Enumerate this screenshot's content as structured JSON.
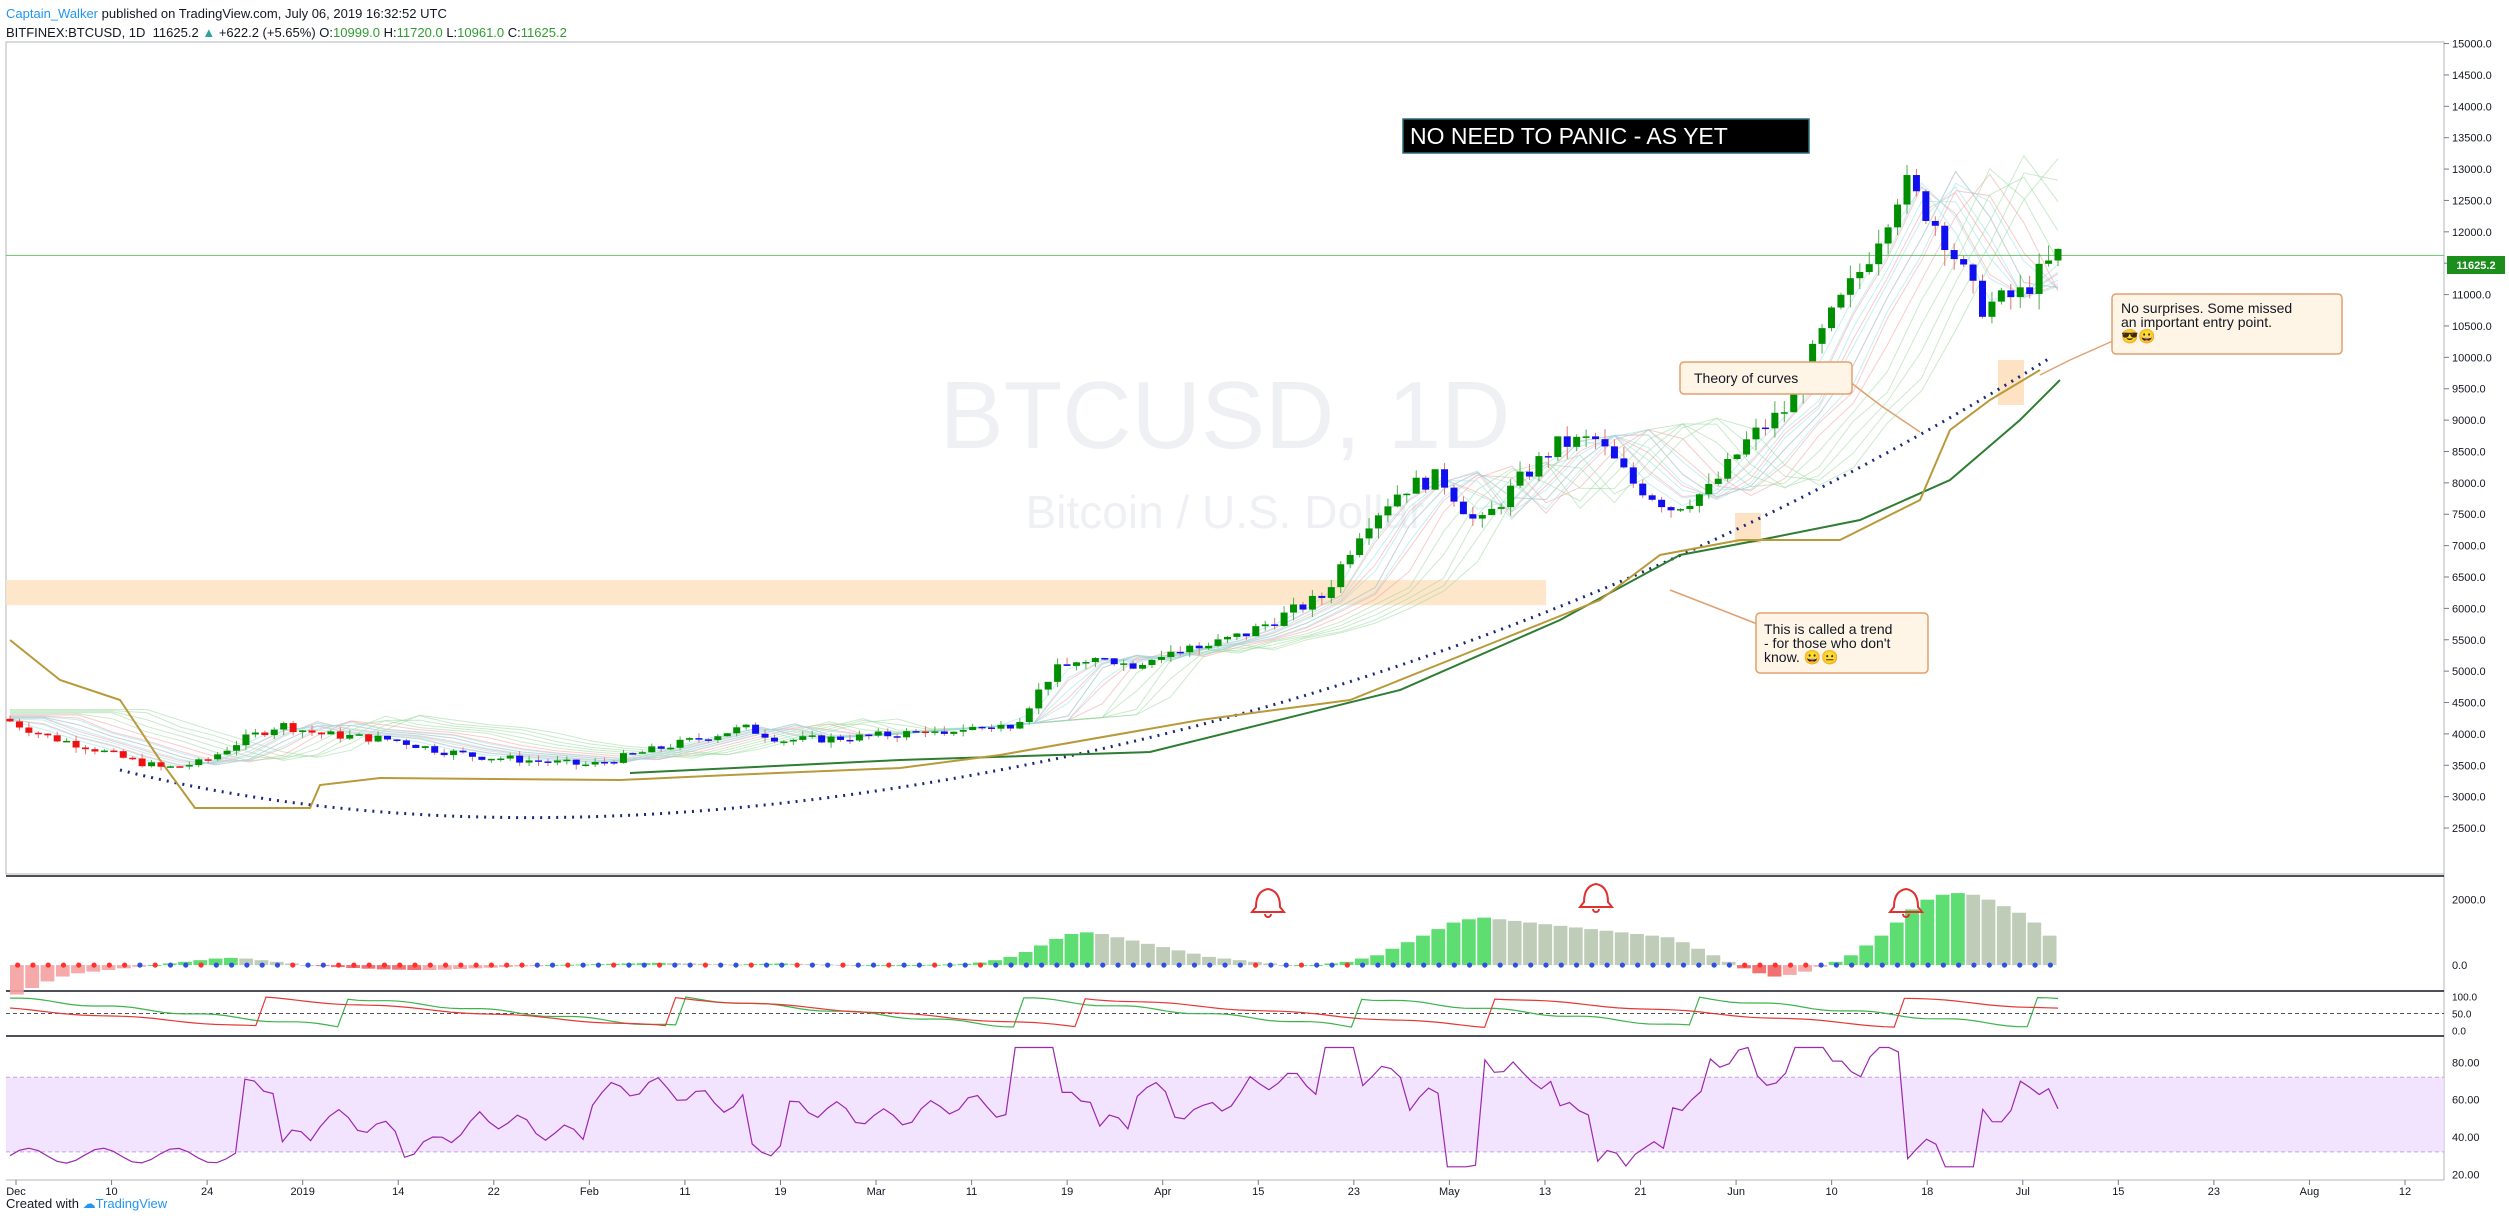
{
  "header": {
    "user": "Captain_Walker",
    "published": "published on TradingView.com, July 06, 2019 16:32:52 UTC",
    "symbol": "BITFINEX:BTCUSD, 1D",
    "last": "11625.2",
    "change": "+622.2 (+5.65%)",
    "o_label": "O:",
    "o_value": "10999.0",
    "h_label": "H:",
    "h_value": "11720.0",
    "l_label": "L:",
    "l_value": "10961.0",
    "c_label": "C:",
    "c_value": "11625.2"
  },
  "footer": {
    "created_with": "Created with",
    "brand": "TradingView"
  },
  "watermark": {
    "symbol": "BTCUSD, 1D",
    "name": "Bitcoin / U.S. Dollar"
  },
  "annotations": {
    "title_box": "NO NEED TO PANIC - AS YET",
    "theory": "Theory of curves",
    "trend": [
      "This is called a trend",
      "- for those who don't",
      "know. 😀😐"
    ],
    "surprises": [
      "No surprises. Some missed",
      "an important entry point.",
      "😎😀"
    ]
  },
  "chart_data": {
    "type": "candlestick",
    "price_axis": {
      "ticks": [
        "15000.0",
        "14500.0",
        "14000.0",
        "13500.0",
        "13000.0",
        "12500.0",
        "12000.0",
        "11500.0",
        "11000.0",
        "10500.0",
        "10000.0",
        "9500.0",
        "9000.0",
        "8500.0",
        "8000.0",
        "7500.0",
        "7000.0",
        "6500.0",
        "6000.0",
        "5500.0",
        "5000.0",
        "4500.0",
        "4000.0",
        "3500.0",
        "3000.0",
        "2500.0"
      ],
      "range": [
        2150,
        15200
      ],
      "last_price_label": "11625.2",
      "last_price": 11625.2
    },
    "time_axis": [
      "Dec",
      "10",
      "24",
      "2019",
      "14",
      "22",
      "Feb",
      "11",
      "19",
      "Mar",
      "11",
      "19",
      "Apr",
      "15",
      "23",
      "May",
      "13",
      "21",
      "Jun",
      "10",
      "18",
      "Jul",
      "15",
      "23",
      "Aug",
      "12"
    ],
    "candles_anchor_prices": [
      4200,
      3950,
      3800,
      3600,
      3450,
      3550,
      3900,
      4150,
      4000,
      3950,
      3900,
      3750,
      3650,
      3600,
      3550,
      3500,
      3650,
      3800,
      3950,
      4100,
      3900,
      3920,
      3950,
      4000,
      4050,
      4100,
      4150,
      5000,
      5200,
      5100,
      5300,
      5400,
      5600,
      5900,
      6200,
      7300,
      7900,
      8100,
      7300,
      8000,
      8600,
      8700,
      8000,
      7600,
      7900,
      8700,
      9200,
      10500,
      11500,
      12800,
      12000,
      10800,
      11000,
      11625
    ],
    "support_zone": [
      6050,
      6450
    ],
    "macd_panel": {
      "ticks": [
        "2000.0",
        "0.0"
      ],
      "range": [
        -700,
        2600
      ],
      "histogram": [
        -900,
        -700,
        -500,
        -350,
        -250,
        -200,
        -150,
        -100,
        -50,
        0,
        50,
        100,
        150,
        200,
        220,
        200,
        150,
        100,
        50,
        0,
        -30,
        -60,
        -90,
        -110,
        -130,
        -140,
        -150,
        -150,
        -140,
        -120,
        -100,
        -80,
        -60,
        -40,
        -20,
        0,
        10,
        20,
        30,
        40,
        50,
        60,
        70,
        60,
        50,
        40,
        30,
        20,
        30,
        40,
        50,
        40,
        30,
        20,
        10,
        0,
        0,
        0,
        0,
        0,
        10,
        20,
        40,
        80,
        150,
        250,
        400,
        600,
        800,
        950,
        1000,
        950,
        850,
        750,
        650,
        550,
        450,
        350,
        250,
        200,
        150,
        100,
        50,
        0,
        0,
        0,
        50,
        100,
        200,
        300,
        500,
        700,
        900,
        1100,
        1300,
        1400,
        1450,
        1400,
        1350,
        1300,
        1250,
        1200,
        1150,
        1100,
        1050,
        1000,
        950,
        900,
        850,
        700,
        500,
        300,
        100,
        -100,
        -250,
        -350,
        -300,
        -200,
        -50,
        100,
        300,
        600,
        900,
        1300,
        1700,
        2000,
        2150,
        2200,
        2150,
        2000,
        1800,
        1600,
        1300,
        900
      ]
    },
    "stoch_panel": {
      "ticks": [
        "100.0",
        "50.0",
        "0.0"
      ],
      "range": [
        -10,
        110
      ]
    },
    "rsi_panel": {
      "ticks": [
        "80.00",
        "60.00",
        "40.00",
        "20.00"
      ],
      "range": [
        18,
        92
      ],
      "band": [
        32,
        72
      ]
    }
  },
  "colors": {
    "up": "#008f00",
    "down_blue": "#1010ee",
    "down_red": "#ee1111",
    "zone": "#fde3c4",
    "last_price": "#1b8e1b"
  }
}
